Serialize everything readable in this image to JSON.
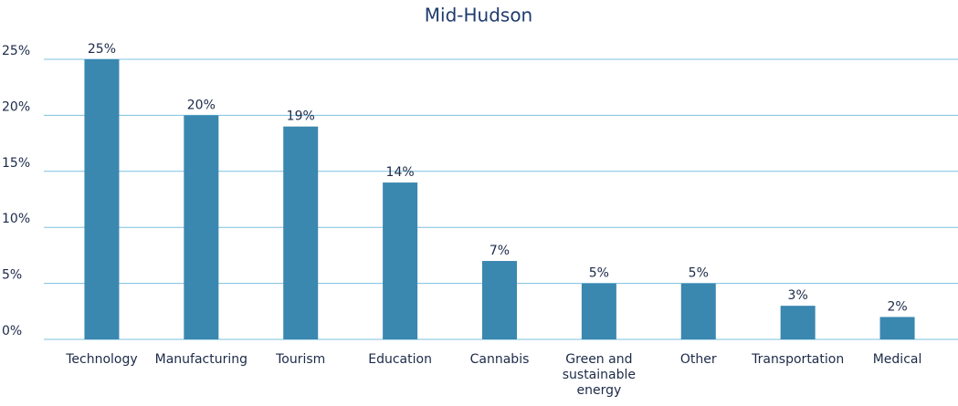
{
  "chart_data": {
    "type": "bar",
    "title": "Mid-Hudson",
    "categories": [
      "Technology",
      "Manufacturing",
      "Tourism",
      "Education",
      "Cannabis",
      "Green and sustainable energy",
      "Other",
      "Transportation",
      "Medical"
    ],
    "values": [
      25,
      20,
      19,
      14,
      7,
      5,
      5,
      3,
      2
    ],
    "value_labels": [
      "25%",
      "20%",
      "19%",
      "14%",
      "7%",
      "5%",
      "5%",
      "3%",
      "2%"
    ],
    "color": "#3a87b0",
    "ylim": [
      0,
      25
    ],
    "yticks": [
      {
        "value": 0,
        "label": "0%"
      },
      {
        "value": 5,
        "label": "5%"
      },
      {
        "value": 10,
        "label": "10%"
      },
      {
        "value": 15,
        "label": "15%"
      },
      {
        "value": 20,
        "label": "20%"
      },
      {
        "value": 25,
        "label": "25%"
      }
    ],
    "grid": true
  }
}
